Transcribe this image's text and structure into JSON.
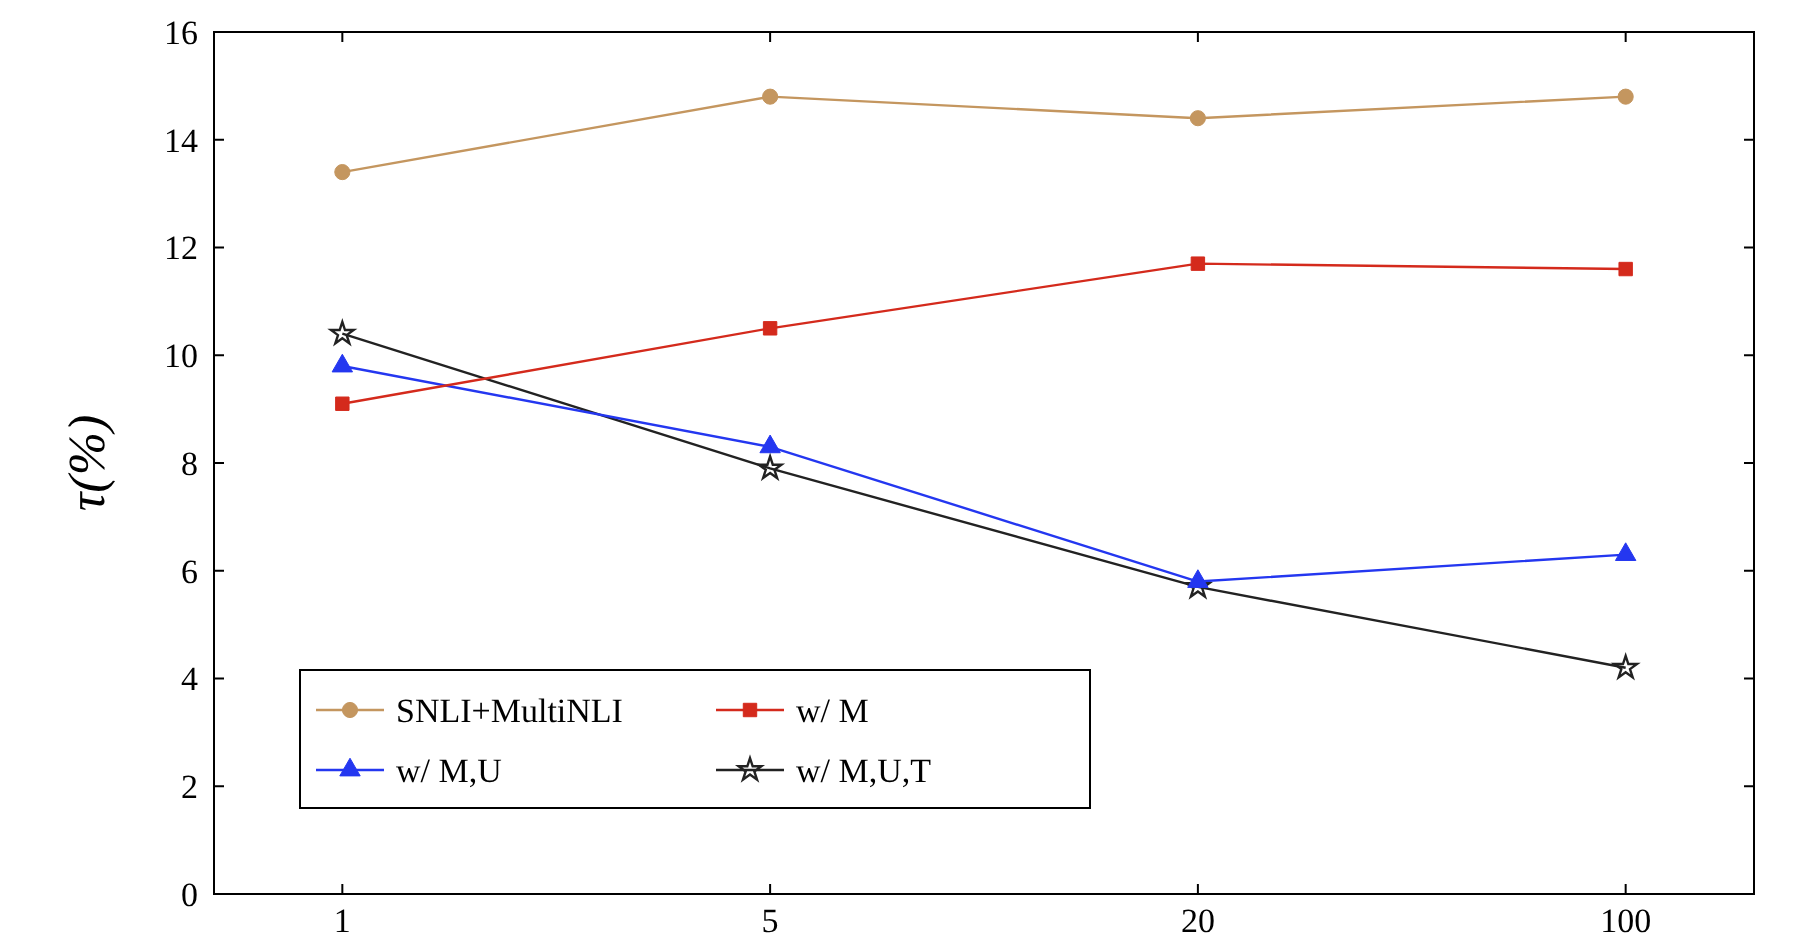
{
  "chart_data": {
    "type": "line",
    "ylabel": "τ(%)",
    "categories": [
      "1",
      "5",
      "20",
      "100"
    ],
    "ylim": [
      0,
      16
    ],
    "yticks": [
      0,
      2,
      4,
      6,
      8,
      10,
      12,
      14,
      16
    ],
    "grid": false,
    "legend": "bottom left",
    "line_style": "solid",
    "series": [
      {
        "name": "SNLI+MultiNLI",
        "color": "#c4965f",
        "marker": "circle",
        "values": [
          13.4,
          14.8,
          14.4,
          14.8
        ]
      },
      {
        "name": "w/ M",
        "color": "#d42a1c",
        "marker": "square",
        "values": [
          9.1,
          10.5,
          11.7,
          11.6
        ]
      },
      {
        "name": "w/ M,U",
        "color": "#2437f0",
        "marker": "triangle",
        "values": [
          9.8,
          8.3,
          5.8,
          6.3
        ]
      },
      {
        "name": "w/ M,U,T",
        "color": "#222222",
        "marker": "star",
        "values": [
          10.4,
          7.9,
          5.7,
          4.2
        ]
      }
    ]
  }
}
